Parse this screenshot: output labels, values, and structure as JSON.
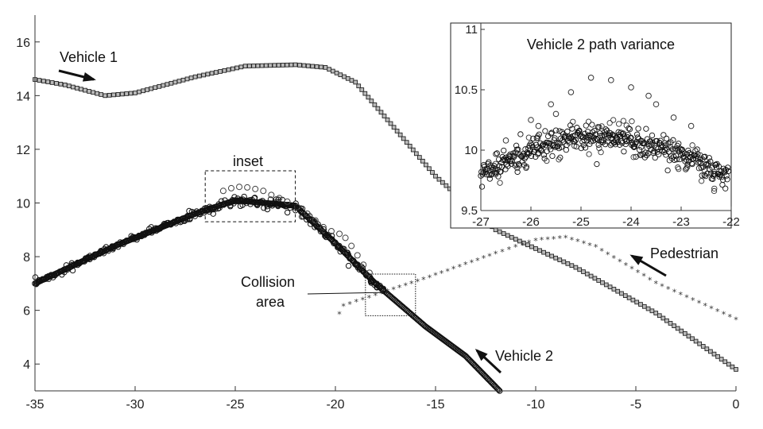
{
  "chart_data": [
    {
      "type": "scatter",
      "xlim": [
        -35,
        0
      ],
      "ylim": [
        3,
        17
      ],
      "xticks": [
        -35,
        -30,
        -25,
        -20,
        -15,
        -10,
        -5,
        0
      ],
      "yticks": [
        4,
        6,
        8,
        10,
        12,
        14,
        16
      ],
      "xtick_labels": [
        "-35",
        "-30",
        "-25",
        "-20",
        "-15",
        "-10",
        "-5",
        "0"
      ],
      "ytick_labels": [
        "4",
        "6",
        "8",
        "10",
        "12",
        "14",
        "16"
      ],
      "grid": false,
      "series": [
        {
          "name": "Vehicle 1",
          "marker": "square",
          "points": [
            [
              -35,
              14.6
            ],
            [
              -33.5,
              14.4
            ],
            [
              -31.5,
              14.0
            ],
            [
              -30,
              14.1
            ],
            [
              -27,
              14.7
            ],
            [
              -24.5,
              15.1
            ],
            [
              -22,
              15.15
            ],
            [
              -20.5,
              15.05
            ],
            [
              -19,
              14.5
            ],
            [
              -15,
              11.0
            ],
            [
              -12,
              9.0
            ],
            [
              -8,
              7.6
            ],
            [
              -4,
              5.9
            ],
            [
              0,
              3.8
            ]
          ]
        },
        {
          "name": "Vehicle 2",
          "marker": "circle",
          "points": [
            [
              -35,
              7.0
            ],
            [
              -31,
              8.4
            ],
            [
              -27,
              9.6
            ],
            [
              -25,
              10.1
            ],
            [
              -22,
              9.9
            ],
            [
              -20,
              8.5
            ],
            [
              -18,
              7.0
            ],
            [
              -15.5,
              5.4
            ],
            [
              -13.5,
              4.3
            ],
            [
              -11.8,
              3.0
            ]
          ]
        },
        {
          "name": "Pedestrian",
          "marker": "star",
          "points": [
            [
              -19.8,
              5.85
            ],
            [
              -19.6,
              6.15
            ],
            [
              -18,
              6.55
            ],
            [
              -15,
              7.3
            ],
            [
              -12,
              8.1
            ],
            [
              -10,
              8.6
            ],
            [
              -8.5,
              8.7
            ],
            [
              -7,
              8.35
            ],
            [
              -4,
              7.0
            ],
            [
              0,
              5.65
            ]
          ]
        }
      ],
      "annotations": {
        "vehicle1": "Vehicle 1",
        "vehicle2": "Vehicle 2",
        "pedestrian": "Pedestrian",
        "inset": "inset",
        "collision_line1": "Collision",
        "collision_line2": "area"
      },
      "inset_box": {
        "x": [
          -26.5,
          -22
        ],
        "y": [
          9.3,
          11.2
        ]
      },
      "collision_box": {
        "x": [
          -18.5,
          -16
        ],
        "y": [
          5.8,
          7.35
        ]
      }
    },
    {
      "type": "scatter",
      "title": "Vehicle 2 path variance",
      "xlim": [
        -27,
        -22
      ],
      "ylim": [
        9.5,
        11
      ],
      "xticks": [
        -27,
        -26,
        -25,
        -24,
        -23,
        -22
      ],
      "yticks": [
        9.5,
        10,
        10.5,
        11
      ],
      "xtick_labels": [
        "-27",
        "-26",
        "-25",
        "-24",
        "-23",
        "-22"
      ],
      "ytick_labels": [
        "9.5",
        "10",
        "10.5",
        "11"
      ],
      "grid": false,
      "series": [
        {
          "marker": "circle",
          "trend": [
            [
              -27,
              9.8
            ],
            [
              -26,
              10.0
            ],
            [
              -25,
              10.12
            ],
            [
              -24,
              10.08
            ],
            [
              -23,
              9.98
            ],
            [
              -22.1,
              9.77
            ]
          ],
          "outliers": [
            [
              -26.5,
              10.08
            ],
            [
              -26.0,
              10.25
            ],
            [
              -25.85,
              10.2
            ],
            [
              -25.6,
              10.38
            ],
            [
              -25.5,
              10.3
            ],
            [
              -25.2,
              10.48
            ],
            [
              -24.8,
              10.6
            ],
            [
              -24.4,
              10.58
            ],
            [
              -24.0,
              10.52
            ],
            [
              -23.65,
              10.45
            ],
            [
              -23.5,
              10.38
            ],
            [
              -23.15,
              10.27
            ],
            [
              -22.8,
              10.2
            ]
          ]
        }
      ]
    }
  ]
}
